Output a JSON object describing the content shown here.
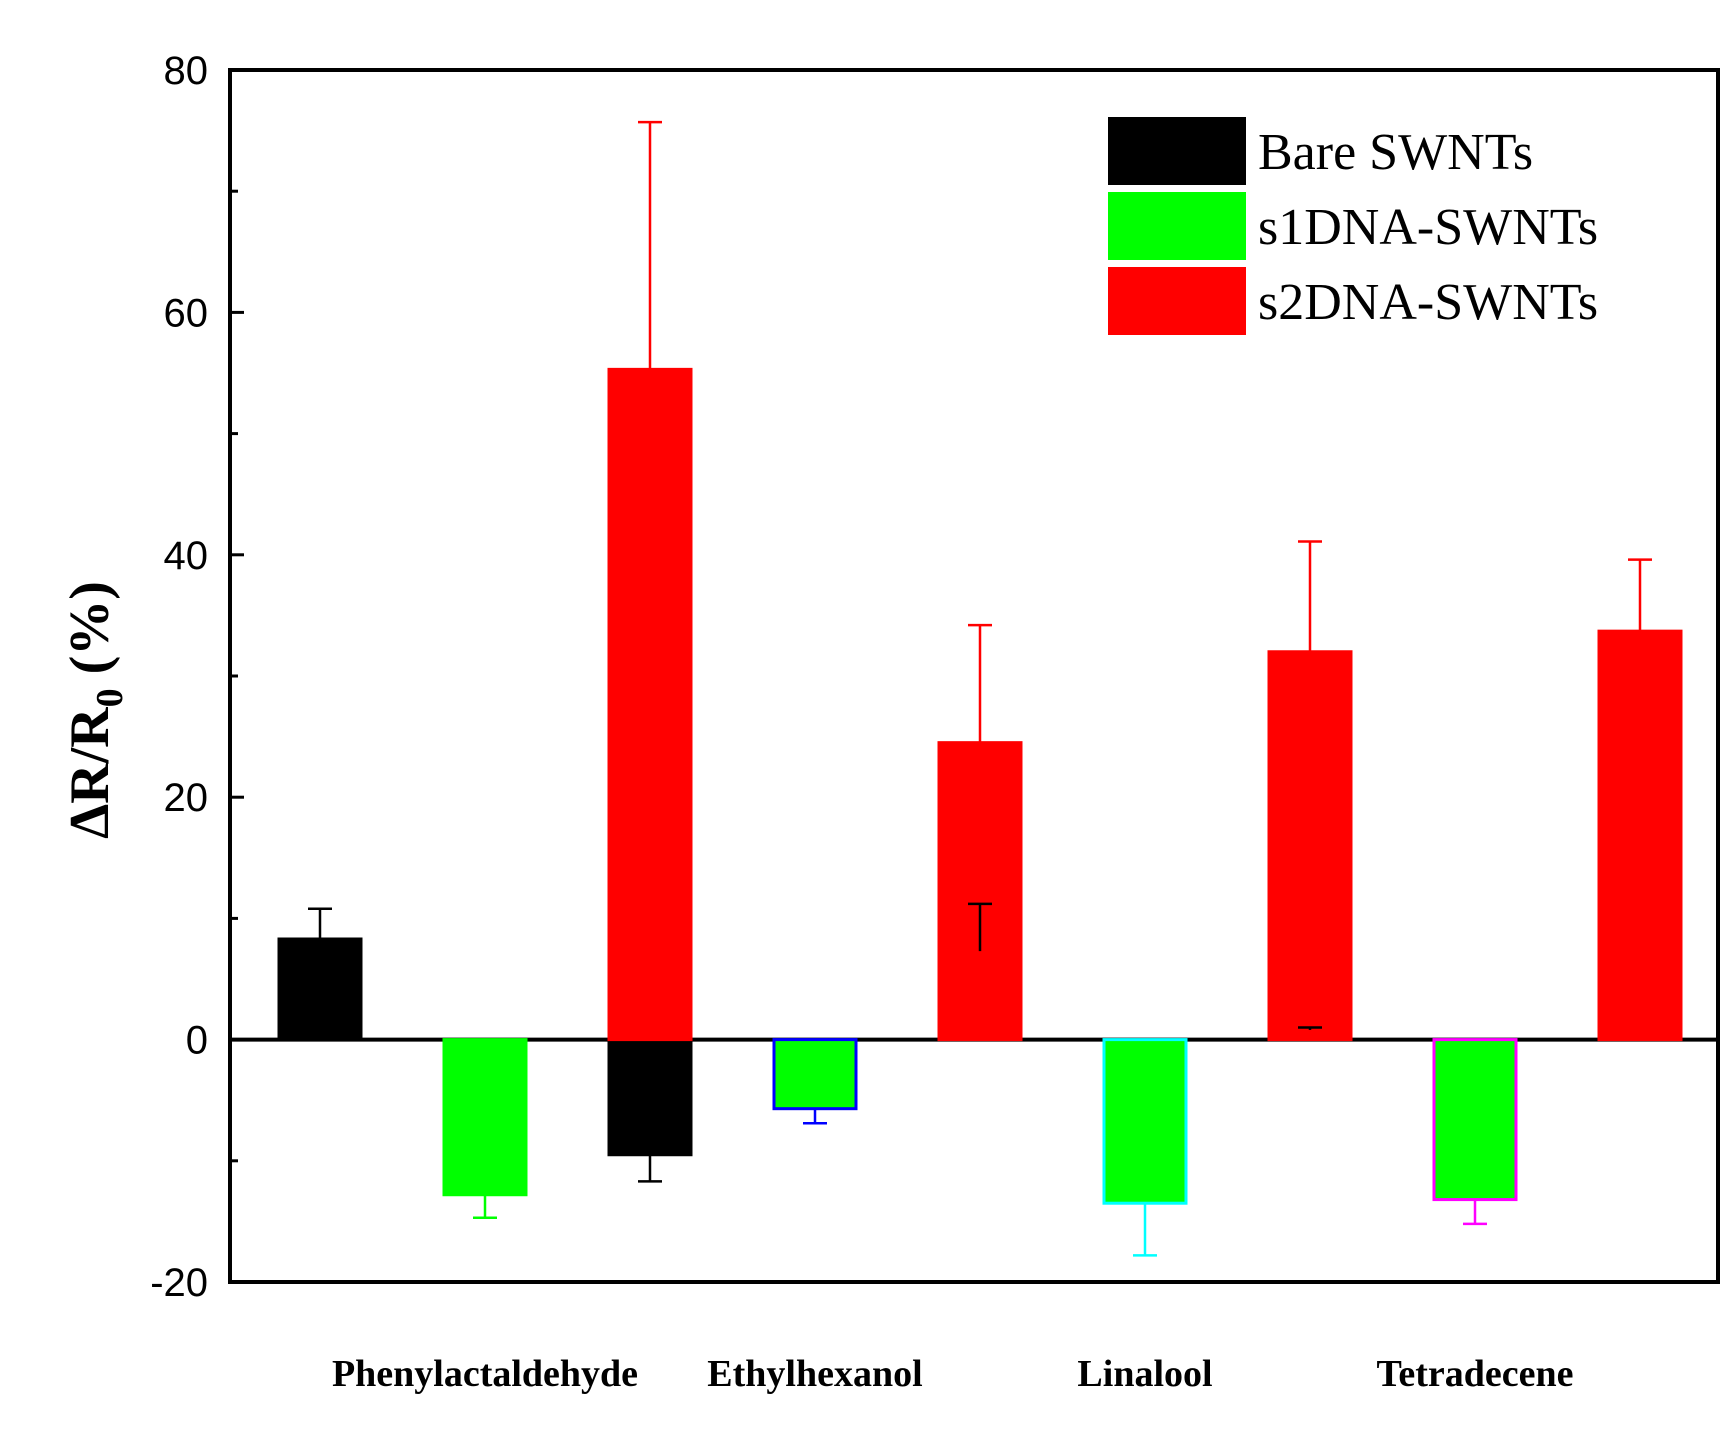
{
  "chart_data": {
    "type": "bar",
    "title": "",
    "xlabel": "",
    "ylabel": "ΔR/R0 (%)",
    "ylabel_parts": {
      "main": "ΔR/R",
      "sub": "0",
      "suffix": " (%)"
    },
    "ylim": [
      -20,
      80
    ],
    "yticks": [
      -20,
      0,
      20,
      40,
      60,
      80
    ],
    "yminor": [
      -10,
      10,
      30,
      50,
      70
    ],
    "categories": [
      "Phenylactaldehyde",
      "Ethylhexanol",
      "Linalool",
      "Tetradecene"
    ],
    "series": [
      {
        "name": "Bare SWNTs",
        "color": "#000000",
        "values": [
          8.3,
          -9.5,
          7.3,
          0.8
        ],
        "errors": [
          2.5,
          2.2,
          3.9,
          0.2
        ],
        "error_colors": [
          "#000000",
          "#000000",
          "#000000",
          "#000000"
        ],
        "edge_colors": [
          "#000000",
          "#000000",
          "#000000",
          "#000000"
        ]
      },
      {
        "name": "s1DNA-SWNTs",
        "color": "#00ff00",
        "values": [
          -12.8,
          -5.7,
          -13.5,
          -13.2
        ],
        "errors": [
          1.9,
          1.2,
          4.3,
          2.0
        ],
        "error_colors": [
          "#00ff00",
          "#0000ff",
          "#00ffff",
          "#ff00ff"
        ],
        "edge_colors": [
          "#00ff00",
          "#0000ff",
          "#00ffff",
          "#ff00ff"
        ]
      },
      {
        "name": "s2DNA-SWNTs",
        "color": "#ff0000",
        "values": [
          55.3,
          24.5,
          32.0,
          33.7
        ],
        "errors": [
          20.4,
          9.7,
          9.1,
          5.9
        ],
        "error_colors": [
          "#ff0000",
          "#ff0000",
          "#ff0000",
          "#ff0000"
        ],
        "edge_colors": [
          "#ff0000",
          "#ff0000",
          "#ff0000",
          "#ff0000"
        ]
      }
    ],
    "legend": {
      "placement": "top-right",
      "entries": [
        "Bare SWNTs",
        "s1DNA-SWNTs",
        "s2DNA-SWNTs"
      ]
    },
    "grid": false
  }
}
